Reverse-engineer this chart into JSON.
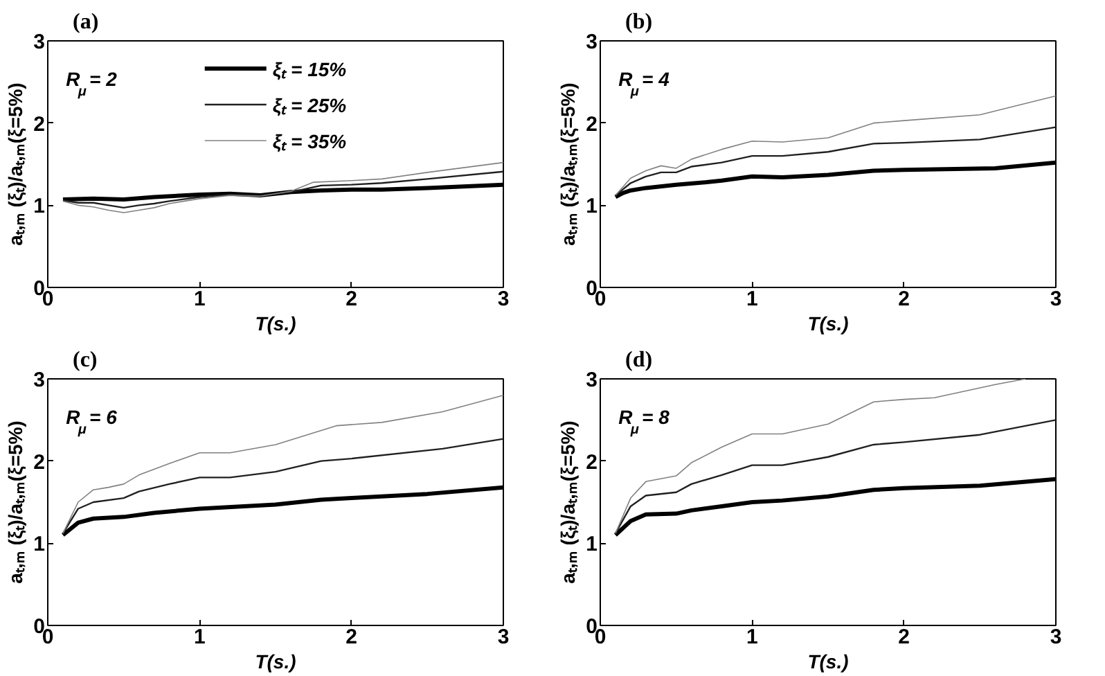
{
  "chart_data": [
    {
      "type": "line",
      "title": "(a)",
      "xlabel": "T(s.)",
      "ylabel": "aₜ,ₘ (ξₜ)/aₜ,ₘ(ξ=5%)",
      "annotations": [
        "R$_{μ}$ = 2"
      ],
      "xlim": [
        0,
        3
      ],
      "ylim": [
        0,
        3
      ],
      "xticks": [
        0,
        1,
        2,
        3
      ],
      "yticks": [
        0,
        1,
        2,
        3
      ],
      "grid": false,
      "legend": "top",
      "series": [
        {
          "name": "ξₜ = 15%",
          "color": "#000000",
          "x": [
            0.1,
            0.3,
            0.5,
            0.7,
            1.0,
            1.2,
            1.4,
            1.6,
            1.8,
            2.0,
            2.2,
            2.5,
            3.0
          ],
          "values": [
            1.07,
            1.08,
            1.07,
            1.1,
            1.13,
            1.14,
            1.12,
            1.16,
            1.18,
            1.19,
            1.19,
            1.21,
            1.25
          ]
        },
        {
          "name": "ξₜ = 25%",
          "color": "#202020",
          "x": [
            0.1,
            0.2,
            0.3,
            0.4,
            0.5,
            0.6,
            0.7,
            0.8,
            1.0,
            1.2,
            1.4,
            1.6,
            1.8,
            2.0,
            2.2,
            2.5,
            3.0
          ],
          "values": [
            1.06,
            1.03,
            1.03,
            1.0,
            0.97,
            1.0,
            1.02,
            1.05,
            1.1,
            1.13,
            1.12,
            1.16,
            1.24,
            1.25,
            1.27,
            1.32,
            1.41
          ]
        },
        {
          "name": "ξₜ = 35%",
          "color": "#808080",
          "x": [
            0.1,
            0.2,
            0.3,
            0.4,
            0.5,
            0.6,
            0.7,
            0.8,
            1.0,
            1.2,
            1.4,
            1.6,
            1.75,
            2.0,
            2.2,
            2.5,
            3.0
          ],
          "values": [
            1.05,
            1.0,
            0.98,
            0.94,
            0.91,
            0.94,
            0.97,
            1.02,
            1.08,
            1.12,
            1.11,
            1.17,
            1.28,
            1.3,
            1.32,
            1.4,
            1.52
          ]
        }
      ]
    },
    {
      "type": "line",
      "title": "(b)",
      "xlabel": "T(s.)",
      "ylabel": "aₜ,ₘ (ξₜ)/aₜ,ₘ(ξ=5%)",
      "annotations": [
        "R$_{μ}$ = 4"
      ],
      "xlim": [
        0,
        3
      ],
      "ylim": [
        0,
        3
      ],
      "xticks": [
        0,
        1,
        2,
        3
      ],
      "yticks": [
        0,
        1,
        2,
        3
      ],
      "grid": false,
      "series": [
        {
          "color": "#000000",
          "x": [
            0.1,
            0.15,
            0.2,
            0.3,
            0.5,
            0.7,
            0.8,
            1.0,
            1.2,
            1.5,
            1.8,
            2.0,
            2.6,
            3.0
          ],
          "values": [
            1.1,
            1.15,
            1.18,
            1.21,
            1.25,
            1.28,
            1.3,
            1.35,
            1.34,
            1.37,
            1.42,
            1.43,
            1.45,
            1.52
          ]
        },
        {
          "color": "#202020",
          "x": [
            0.1,
            0.2,
            0.3,
            0.4,
            0.5,
            0.6,
            0.8,
            1.0,
            1.2,
            1.5,
            1.8,
            2.0,
            2.5,
            3.0
          ],
          "values": [
            1.12,
            1.27,
            1.35,
            1.4,
            1.4,
            1.47,
            1.52,
            1.6,
            1.6,
            1.65,
            1.75,
            1.76,
            1.8,
            1.95
          ]
        },
        {
          "color": "#808080",
          "x": [
            0.1,
            0.2,
            0.3,
            0.4,
            0.5,
            0.6,
            0.8,
            1.0,
            1.2,
            1.5,
            1.8,
            2.0,
            2.5,
            3.0
          ],
          "values": [
            1.12,
            1.33,
            1.42,
            1.48,
            1.45,
            1.56,
            1.68,
            1.78,
            1.77,
            1.82,
            2.0,
            2.03,
            2.1,
            2.33
          ]
        }
      ]
    },
    {
      "type": "line",
      "title": "(c)",
      "xlabel": "T(s.)",
      "ylabel": "aₜ,ₘ (ξₜ)/aₜ,ₘ(ξ=5%)",
      "annotations": [
        "R$_{μ}$ = 6"
      ],
      "xlim": [
        0,
        3
      ],
      "ylim": [
        0,
        3
      ],
      "xticks": [
        0,
        1,
        2,
        3
      ],
      "yticks": [
        0,
        1,
        2,
        3
      ],
      "grid": false,
      "series": [
        {
          "color": "#000000",
          "x": [
            0.1,
            0.2,
            0.3,
            0.5,
            0.7,
            1.0,
            1.5,
            1.8,
            2.0,
            2.5,
            3.0
          ],
          "values": [
            1.1,
            1.25,
            1.3,
            1.32,
            1.37,
            1.42,
            1.47,
            1.53,
            1.55,
            1.6,
            1.68
          ]
        },
        {
          "color": "#202020",
          "x": [
            0.1,
            0.2,
            0.3,
            0.5,
            0.6,
            0.8,
            1.0,
            1.2,
            1.5,
            1.8,
            2.0,
            2.6,
            3.0
          ],
          "values": [
            1.12,
            1.42,
            1.5,
            1.55,
            1.63,
            1.72,
            1.8,
            1.8,
            1.87,
            2.0,
            2.03,
            2.15,
            2.27
          ]
        },
        {
          "color": "#808080",
          "x": [
            0.1,
            0.2,
            0.3,
            0.4,
            0.5,
            0.6,
            0.8,
            1.0,
            1.2,
            1.5,
            1.9,
            2.2,
            2.6,
            3.0
          ],
          "values": [
            1.12,
            1.5,
            1.65,
            1.68,
            1.72,
            1.83,
            1.97,
            2.1,
            2.1,
            2.2,
            2.43,
            2.47,
            2.6,
            2.8
          ]
        }
      ]
    },
    {
      "type": "line",
      "title": "(d)",
      "xlabel": "T(s.)",
      "ylabel": "aₜ,ₘ (ξₜ)/aₜ,ₘ(ξ=5%)",
      "annotations": [
        "R$_{μ}$ = 8"
      ],
      "xlim": [
        0,
        3
      ],
      "ylim": [
        0,
        3
      ],
      "xticks": [
        0,
        1,
        2,
        3
      ],
      "yticks": [
        0,
        1,
        2,
        3
      ],
      "grid": false,
      "series": [
        {
          "color": "#000000",
          "x": [
            0.1,
            0.2,
            0.3,
            0.5,
            0.6,
            0.8,
            1.0,
            1.2,
            1.5,
            1.8,
            2.0,
            2.5,
            3.0
          ],
          "values": [
            1.1,
            1.27,
            1.35,
            1.36,
            1.4,
            1.45,
            1.5,
            1.52,
            1.57,
            1.65,
            1.67,
            1.7,
            1.78
          ]
        },
        {
          "color": "#202020",
          "x": [
            0.1,
            0.2,
            0.3,
            0.5,
            0.6,
            0.8,
            1.0,
            1.2,
            1.5,
            1.8,
            2.0,
            2.5,
            3.0
          ],
          "values": [
            1.12,
            1.45,
            1.58,
            1.62,
            1.72,
            1.83,
            1.95,
            1.95,
            2.05,
            2.2,
            2.23,
            2.32,
            2.5
          ]
        },
        {
          "color": "#808080",
          "x": [
            0.1,
            0.2,
            0.3,
            0.5,
            0.6,
            0.8,
            1.0,
            1.2,
            1.5,
            1.8,
            2.0,
            2.2,
            2.6,
            2.8
          ],
          "values": [
            1.12,
            1.55,
            1.75,
            1.82,
            1.98,
            2.17,
            2.33,
            2.33,
            2.45,
            2.72,
            2.75,
            2.77,
            2.93,
            3.0
          ]
        }
      ]
    }
  ]
}
